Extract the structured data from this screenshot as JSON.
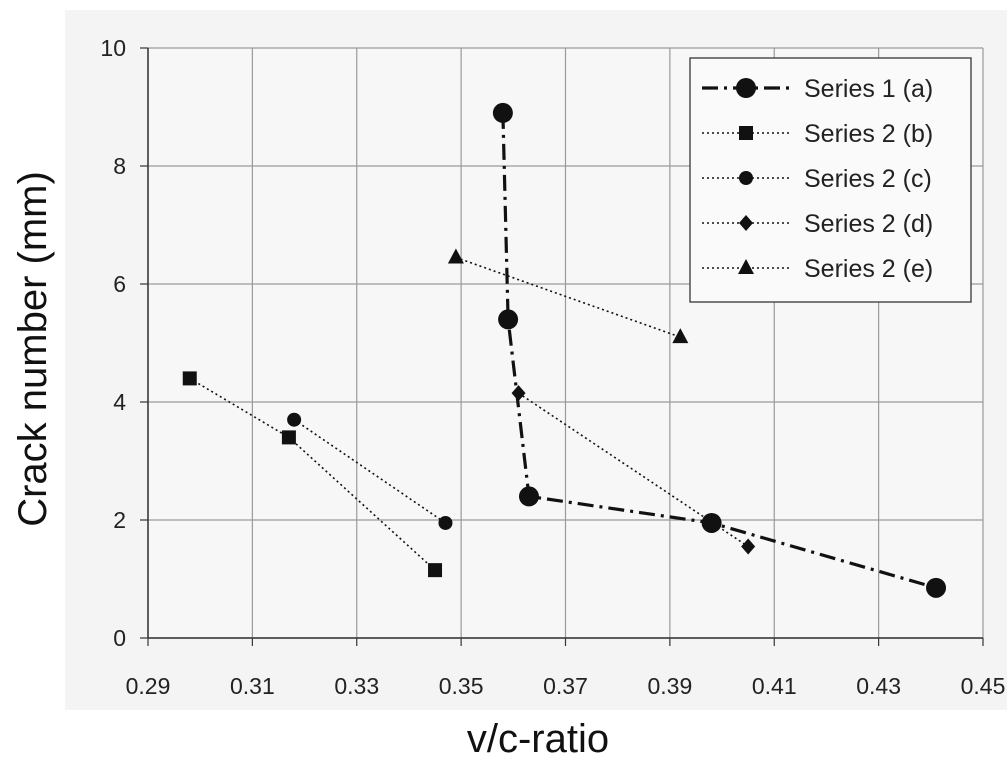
{
  "chart_data": {
    "type": "scatter",
    "xlabel": "v/c-ratio",
    "ylabel": "Crack number    (mm)",
    "xlim": [
      0.29,
      0.45
    ],
    "ylim": [
      0,
      10
    ],
    "xticks": [
      "0.29",
      "0.31",
      "0.33",
      "0.35",
      "0.37",
      "0.39",
      "0.41",
      "0.43",
      "0.45"
    ],
    "yticks": [
      "0",
      "2",
      "4",
      "6",
      "8",
      "10"
    ],
    "grid": true,
    "legend_position": "top-right",
    "series": [
      {
        "name": "Series 1 (a)",
        "marker": "large-circle",
        "line": "dash-dot",
        "x": [
          0.358,
          0.359,
          0.363,
          0.398,
          0.441
        ],
        "y": [
          8.9,
          5.4,
          2.4,
          1.95,
          0.85
        ]
      },
      {
        "name": "Series 2 (b)",
        "marker": "square",
        "line": "dotted",
        "x": [
          0.298,
          0.317,
          0.345
        ],
        "y": [
          4.4,
          3.4,
          1.15
        ]
      },
      {
        "name": "Series 2 (c)",
        "marker": "small-circle",
        "line": "dotted",
        "x": [
          0.318,
          0.347
        ],
        "y": [
          3.7,
          1.95
        ]
      },
      {
        "name": "Series 2 (d)",
        "marker": "diamond",
        "line": "dotted",
        "x": [
          0.361,
          0.405
        ],
        "y": [
          4.15,
          1.55
        ]
      },
      {
        "name": "Series 2 (e)",
        "marker": "triangle",
        "line": "dotted",
        "x": [
          0.349,
          0.392
        ],
        "y": [
          6.45,
          5.1
        ]
      }
    ],
    "colors": {
      "series": "#111111",
      "grid": "#9a9a9a",
      "plot_background": "#f4f4f4"
    }
  }
}
